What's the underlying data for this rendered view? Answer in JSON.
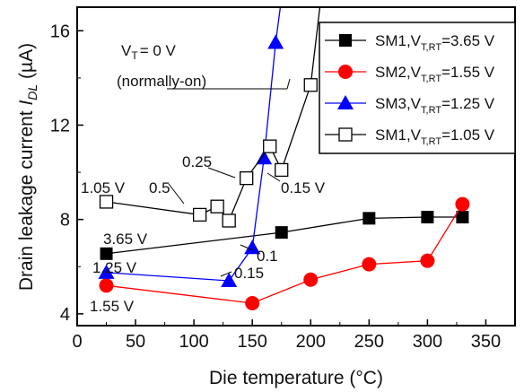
{
  "chart_data": {
    "type": "line",
    "xlabel": "Die temperature (°C)",
    "ylabel_main": "Drain leakage current ",
    "ylabel_italic": "I",
    "ylabel_sub": "DL",
    "ylabel_unit": " (µA)",
    "xlim": [
      0,
      375
    ],
    "ylim": [
      3.5,
      17
    ],
    "xticks": [
      0,
      50,
      100,
      150,
      200,
      250,
      300,
      350
    ],
    "yticks": [
      4,
      8,
      12,
      16
    ],
    "grid": false,
    "legend_position": "top-right",
    "series": [
      {
        "name": "SM1,V_T,RT=3.65 V",
        "legend_main": "SM1,V",
        "legend_sub": "T,RT",
        "legend_tail": "=3.65 V",
        "color": "#000000",
        "marker": "filled-square",
        "x": [
          25,
          175,
          250,
          300,
          330
        ],
        "y": [
          6.55,
          7.45,
          8.05,
          8.1,
          8.1
        ]
      },
      {
        "name": "SM2,V_T,RT=1.55 V",
        "legend_main": "SM2,V",
        "legend_sub": "T,RT",
        "legend_tail": "=1.55 V",
        "color": "#ff0000",
        "marker": "filled-circle",
        "x": [
          25,
          150,
          200,
          250,
          300,
          330
        ],
        "y": [
          5.2,
          4.45,
          5.45,
          6.1,
          6.25,
          8.65
        ]
      },
      {
        "name": "SM3,V_T,RT=1.25 V",
        "legend_main": "SM3,V",
        "legend_sub": "T,RT",
        "legend_tail": "=1.25 V",
        "color": "#0000ff",
        "marker": "filled-triangle",
        "x": [
          25,
          130,
          150,
          160,
          170,
          182
        ],
        "y": [
          5.75,
          5.4,
          6.8,
          10.6,
          15.5,
          20
        ]
      },
      {
        "name": "SM1,V_T,RT=1.05 V",
        "legend_main": "SM1,V",
        "legend_sub": "T,RT",
        "legend_tail": "=1.05 V",
        "color": "#000000",
        "marker": "open-square",
        "x": [
          25,
          105,
          120,
          130,
          145,
          165,
          175,
          200,
          215
        ],
        "y": [
          8.75,
          8.2,
          8.55,
          7.95,
          9.75,
          11.1,
          10.1,
          13.7,
          20
        ]
      }
    ],
    "annotations": {
      "vt_label": "V",
      "vt_sub": "T",
      "vt_value": "= 0 V",
      "normally_on": "(normally-on)",
      "labels": [
        {
          "id": "a-105",
          "text": "1.05 V"
        },
        {
          "id": "a-05",
          "text": "0.5"
        },
        {
          "id": "a-025",
          "text": "0.25"
        },
        {
          "id": "a-015-open",
          "text": "0.15 V"
        },
        {
          "id": "a-365",
          "text": "3.65 V"
        },
        {
          "id": "a-125",
          "text": "1.25 V"
        },
        {
          "id": "a-01",
          "text": "0.1"
        },
        {
          "id": "a-015-blue",
          "text": "0.15"
        },
        {
          "id": "a-155",
          "text": "1.55 V"
        }
      ]
    }
  }
}
